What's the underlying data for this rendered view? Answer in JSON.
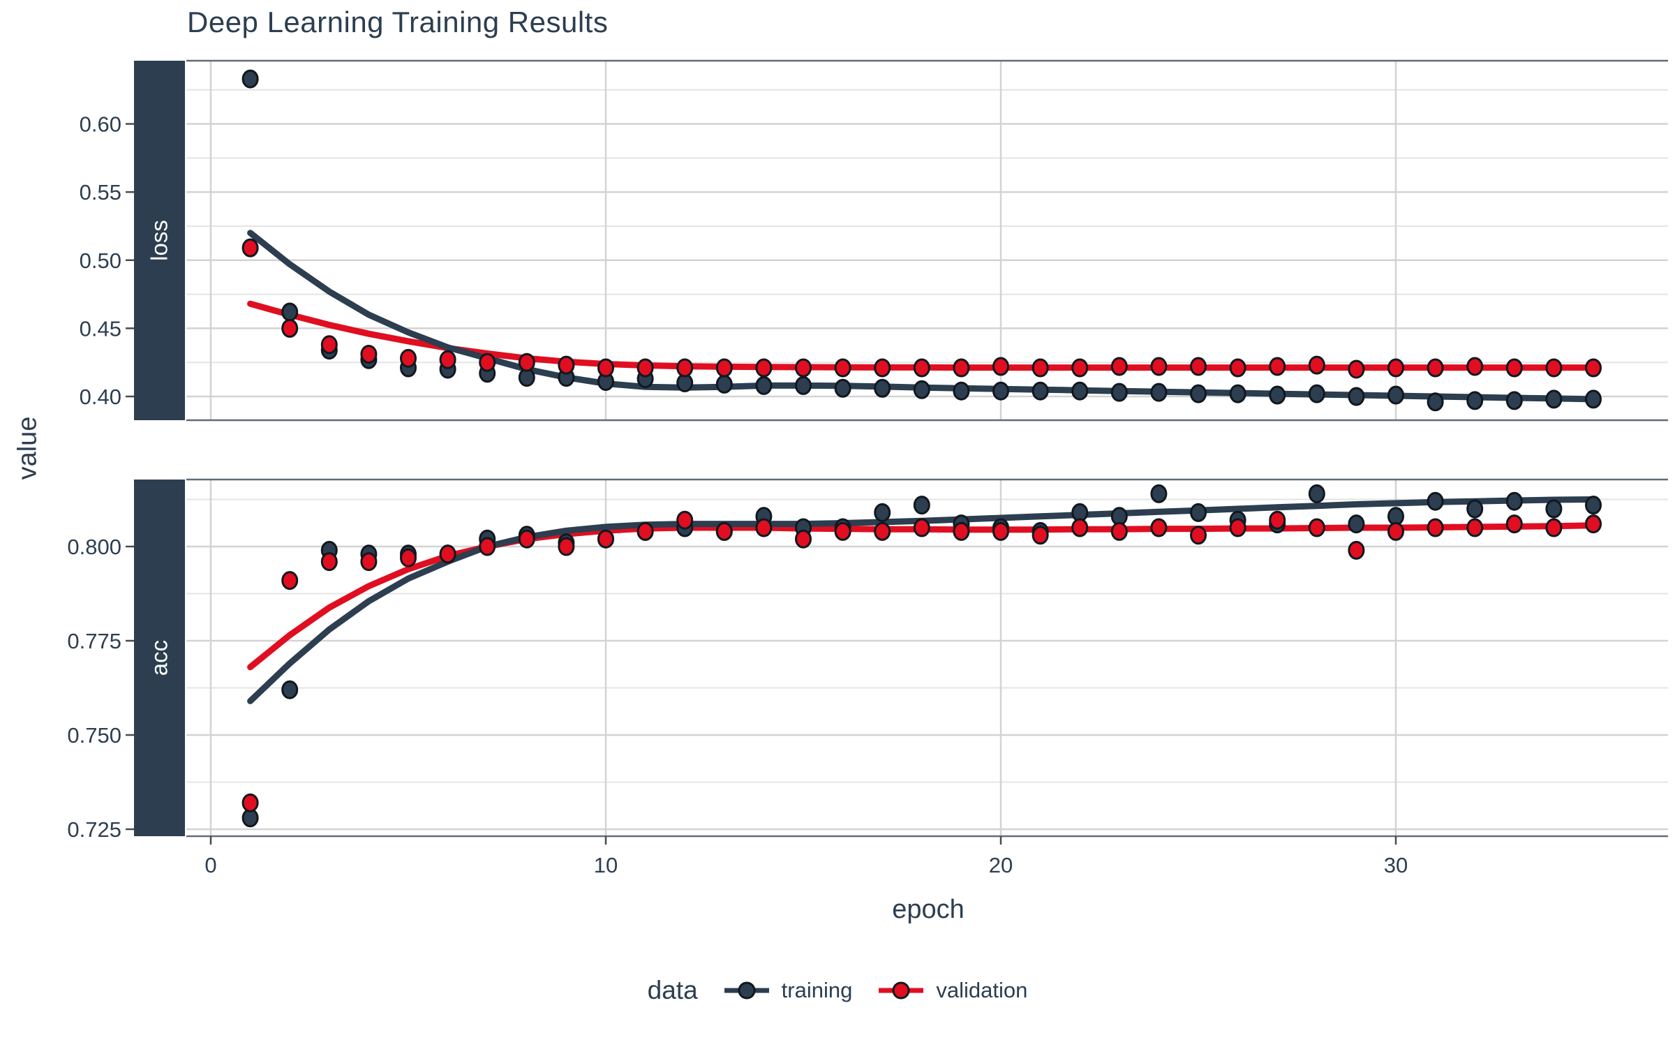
{
  "title": "Deep Learning Training Results",
  "chart_data": {
    "type": "scatter",
    "subtype": "points-with-loess-smooth, faceted rows",
    "title": "Deep Learning Training Results",
    "xlabel": "epoch",
    "ylabel": "value",
    "legend": {
      "title": "data",
      "entries": [
        "training",
        "validation"
      ],
      "position": "bottom"
    },
    "colors": {
      "training": "#2c3e50",
      "validation": "#e00e20",
      "point_stroke": "#10181f",
      "strip_bg": "#2c3e50",
      "strip_text": "#ffffff",
      "grid_major": "#d3d3d3",
      "grid_minor": "#e4e4e4",
      "panel_border": "#5d6d7d",
      "text": "#2c3e50"
    },
    "x": {
      "ticks": [
        0,
        10,
        20,
        30
      ],
      "tick_labels": [
        "0",
        "10",
        "20",
        "30"
      ],
      "lim": [
        -0.6,
        36.9
      ]
    },
    "epochs": [
      1,
      2,
      3,
      4,
      5,
      6,
      7,
      8,
      9,
      10,
      11,
      12,
      13,
      14,
      15,
      16,
      17,
      18,
      19,
      20,
      21,
      22,
      23,
      24,
      25,
      26,
      27,
      28,
      29,
      30,
      31,
      32,
      33,
      34,
      35
    ],
    "facets": [
      {
        "name": "loss",
        "ylim": [
          0.3826,
          0.6464
        ],
        "y_major": [
          0.4,
          0.45,
          0.5,
          0.55,
          0.6
        ],
        "y_tick_labels": [
          "0.40",
          "0.45",
          "0.50",
          "0.55",
          "0.60"
        ],
        "y_minor": [
          0.425,
          0.475,
          0.525,
          0.575,
          0.625
        ],
        "series": {
          "training": {
            "points": [
              0.633,
              0.462,
              0.434,
              0.427,
              0.421,
              0.42,
              0.417,
              0.414,
              0.414,
              0.411,
              0.413,
              0.41,
              0.409,
              0.408,
              0.408,
              0.406,
              0.406,
              0.405,
              0.404,
              0.404,
              0.404,
              0.404,
              0.403,
              0.403,
              0.402,
              0.402,
              0.401,
              0.402,
              0.4,
              0.401,
              0.396,
              0.397,
              0.397,
              0.398,
              0.398
            ],
            "smooth": [
              0.52,
              0.497,
              0.477,
              0.46,
              0.447,
              0.436,
              0.428,
              0.42,
              0.414,
              0.4095,
              0.407,
              0.4065,
              0.407,
              0.408,
              0.408,
              0.4078,
              0.4072,
              0.4065,
              0.406,
              0.4055,
              0.405,
              0.4045,
              0.404,
              0.4035,
              0.403,
              0.4025,
              0.402,
              0.4015,
              0.401,
              0.4005,
              0.4,
              0.3995,
              0.399,
              0.3985,
              0.398
            ]
          },
          "validation": {
            "points": [
              0.509,
              0.45,
              0.438,
              0.431,
              0.428,
              0.427,
              0.425,
              0.425,
              0.423,
              0.421,
              0.421,
              0.421,
              0.421,
              0.421,
              0.421,
              0.421,
              0.421,
              0.421,
              0.421,
              0.422,
              0.421,
              0.421,
              0.422,
              0.422,
              0.422,
              0.421,
              0.422,
              0.423,
              0.42,
              0.421,
              0.421,
              0.422,
              0.421,
              0.421,
              0.421
            ],
            "smooth": [
              0.468,
              0.46,
              0.4525,
              0.446,
              0.4405,
              0.4355,
              0.4315,
              0.428,
              0.4255,
              0.4238,
              0.4228,
              0.4222,
              0.4218,
              0.4216,
              0.4215,
              0.4214,
              0.4213,
              0.4213,
              0.4212,
              0.4212,
              0.4212,
              0.4212,
              0.4212,
              0.4212,
              0.4212,
              0.4212,
              0.4212,
              0.4212,
              0.4212,
              0.4212,
              0.4212,
              0.4212,
              0.4212,
              0.4212,
              0.4212
            ]
          }
        }
      },
      {
        "name": "acc",
        "ylim": [
          0.7231,
          0.8178
        ],
        "y_major": [
          0.725,
          0.75,
          0.775,
          0.8
        ],
        "y_tick_labels": [
          "0.725",
          "0.750",
          "0.775",
          "0.800"
        ],
        "y_minor": [
          0.7375,
          0.7625,
          0.7875,
          0.8125
        ],
        "series": {
          "training": {
            "points": [
              0.728,
              0.762,
              0.799,
              0.798,
              0.798,
              0.798,
              0.802,
              0.803,
              0.801,
              0.802,
              0.804,
              0.805,
              0.804,
              0.808,
              0.805,
              0.805,
              0.809,
              0.811,
              0.806,
              0.805,
              0.804,
              0.809,
              0.808,
              0.814,
              0.809,
              0.807,
              0.806,
              0.814,
              0.806,
              0.808,
              0.812,
              0.81,
              0.812,
              0.81,
              0.811
            ],
            "smooth": [
              0.759,
              0.769,
              0.778,
              0.7855,
              0.7915,
              0.796,
              0.8,
              0.8025,
              0.8042,
              0.8052,
              0.8058,
              0.806,
              0.806,
              0.806,
              0.806,
              0.8062,
              0.8065,
              0.8068,
              0.8072,
              0.8076,
              0.808,
              0.8084,
              0.8088,
              0.8092,
              0.8096,
              0.81,
              0.8104,
              0.8108,
              0.8112,
              0.8115,
              0.8118,
              0.812,
              0.8122,
              0.8124,
              0.8125
            ]
          },
          "validation": {
            "points": [
              0.732,
              0.791,
              0.796,
              0.796,
              0.797,
              0.798,
              0.8,
              0.802,
              0.8,
              0.802,
              0.804,
              0.807,
              0.804,
              0.805,
              0.802,
              0.804,
              0.804,
              0.805,
              0.804,
              0.804,
              0.803,
              0.805,
              0.804,
              0.805,
              0.803,
              0.805,
              0.807,
              0.805,
              0.799,
              0.804,
              0.805,
              0.805,
              0.806,
              0.805,
              0.806
            ],
            "smooth": [
              0.768,
              0.7765,
              0.7838,
              0.7895,
              0.794,
              0.7975,
              0.8,
              0.802,
              0.8033,
              0.8042,
              0.8048,
              0.805,
              0.805,
              0.805,
              0.8048,
              0.8047,
              0.8046,
              0.8046,
              0.8045,
              0.8045,
              0.8045,
              0.8046,
              0.8046,
              0.8047,
              0.8047,
              0.8048,
              0.8048,
              0.8049,
              0.805,
              0.805,
              0.8051,
              0.8052,
              0.8053,
              0.8054,
              0.8056
            ]
          }
        }
      }
    ]
  }
}
